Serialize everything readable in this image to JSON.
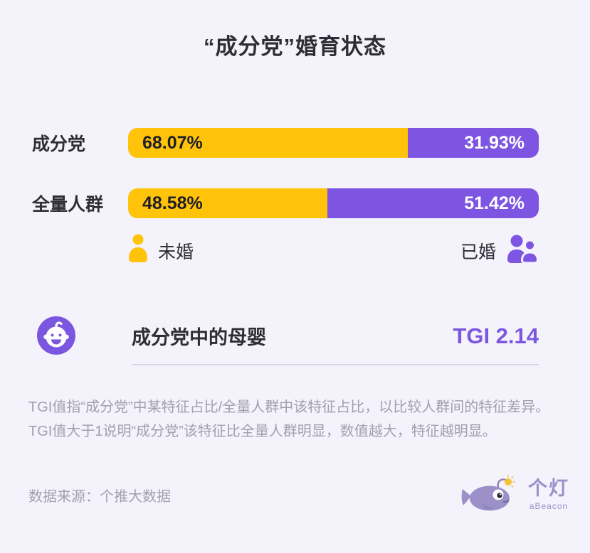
{
  "page": {
    "background": "#f4f2fb",
    "title": "“成分党”婚育状态"
  },
  "chart_data": {
    "type": "bar",
    "variant": "horizontal-stacked-100-percent",
    "title": "“成分党”婚育状态",
    "categories": [
      "成分党",
      "全量人群"
    ],
    "series": [
      {
        "name": "未婚",
        "color": "#ffc40a",
        "values": [
          68.07,
          48.58
        ]
      },
      {
        "name": "已婚",
        "color": "#7d55e2",
        "values": [
          31.93,
          51.42
        ]
      }
    ],
    "value_labels": [
      [
        "68.07%",
        "31.93%"
      ],
      [
        "48.58%",
        "51.42%"
      ]
    ],
    "xlim": [
      0,
      100
    ],
    "grid": false,
    "legend_position": "bottom",
    "annotation": {
      "label": "成分党中的母婴",
      "tgi": 2.14
    }
  },
  "bars": [
    {
      "category": "成分党",
      "unmarried_pct": 68.07,
      "unmarried_label": "68.07%",
      "married_pct": 31.93,
      "married_label": "31.93%"
    },
    {
      "category": "全量人群",
      "unmarried_pct": 48.58,
      "unmarried_label": "48.58%",
      "married_pct": 51.42,
      "married_label": "51.42%"
    }
  ],
  "legend": {
    "unmarried_label": "未婚",
    "married_label": "已婚"
  },
  "tgi_card": {
    "icon": "baby-icon",
    "title": "成分党中的母婴",
    "value": "TGI 2.14"
  },
  "notes": {
    "line1": "TGI值指“成分党”中某特征占比/全量人群中该特征占比，以比较人群间的特征差异。",
    "line2": "TGI值大于1说明“成分党”该特征比全量人群明显，数值越大，特征越明显。"
  },
  "footer": {
    "source": "数据来源：个推大数据",
    "logo_cn": "个灯",
    "logo_en": "aBeacon"
  },
  "colors": {
    "unmarried_yellow": "#ffc40a",
    "married_purple": "#7d55e2",
    "accent_purple": "#7b57e0",
    "text_dark": "#2e2d35",
    "text_gray": "#a1a0ad",
    "logo_purple": "#9b90c8",
    "background": "#f4f2fb"
  }
}
